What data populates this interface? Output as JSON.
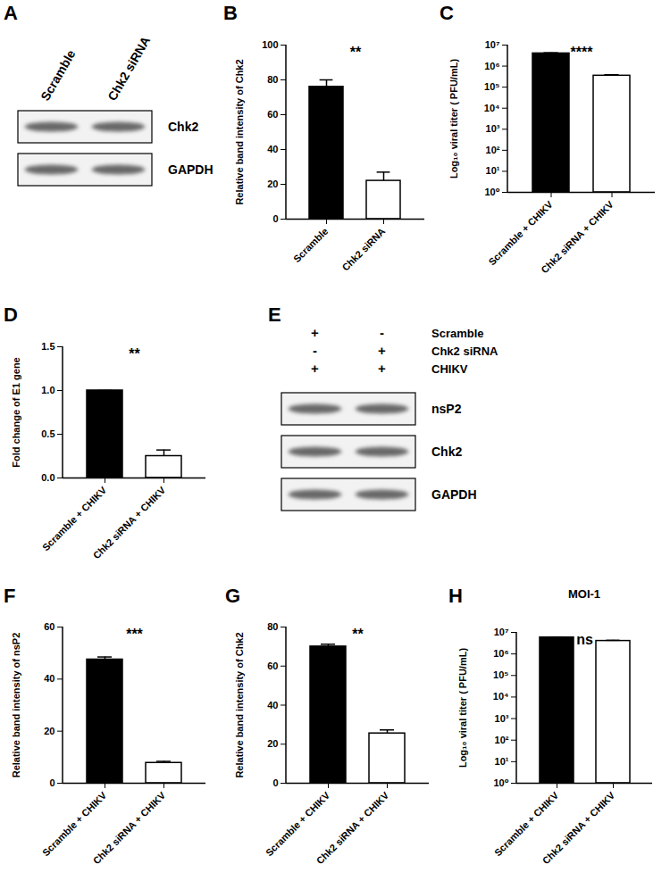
{
  "chart_data": [
    {
      "panel": "A",
      "type": "blot",
      "lanes": [
        "Scramble",
        "Chk2 siRNA"
      ],
      "bands": [
        "Chk2",
        "GAPDH"
      ]
    },
    {
      "panel": "B",
      "type": "bar",
      "categories": [
        "Scramble",
        "Chk2 siRNA"
      ],
      "values": [
        76,
        22
      ],
      "errors": [
        4,
        5
      ],
      "colors": [
        "#000000",
        "#ffffff"
      ],
      "ylabel": "Relative band intensity of Chk2",
      "ylim": [
        0,
        100
      ],
      "yticks": [
        0,
        20,
        40,
        60,
        80,
        100
      ],
      "annotation": "**"
    },
    {
      "panel": "C",
      "type": "bar",
      "categories": [
        "Scramble + CHIKV",
        "Chk2 siRNA + CHIKV"
      ],
      "values": [
        4000000,
        350000
      ],
      "errors": [
        300000,
        40000
      ],
      "colors": [
        "#000000",
        "#ffffff"
      ],
      "ylabel": "Log₁₀ viral titer ( PFU/mL)",
      "log": true,
      "ylim": [
        1,
        10000000
      ],
      "yticks": [
        {
          "value": 1,
          "label": "10⁰"
        },
        {
          "value": 10,
          "label": "10¹"
        },
        {
          "value": 100,
          "label": "10²"
        },
        {
          "value": 1000,
          "label": "10³"
        },
        {
          "value": 10000,
          "label": "10⁴"
        },
        {
          "value": 100000,
          "label": "10⁵"
        },
        {
          "value": 1000000,
          "label": "10⁶"
        },
        {
          "value": 10000000,
          "label": "10⁷"
        }
      ],
      "annotation": "****"
    },
    {
      "panel": "D",
      "type": "bar",
      "categories": [
        "Scramble + CHIKV",
        "Chk2 siRNA + CHIKV"
      ],
      "values": [
        1.0,
        0.25
      ],
      "errors": [
        0,
        0.07
      ],
      "colors": [
        "#000000",
        "#ffffff"
      ],
      "ylabel": "Fold change of E1 gene",
      "ylim": [
        0,
        1.5
      ],
      "yticks": [
        {
          "value": 0,
          "label": "0.0"
        },
        0.5,
        {
          "value": 1,
          "label": "1.0"
        },
        1.5
      ],
      "annotation": "**"
    },
    {
      "panel": "E",
      "type": "blot",
      "lanes": [
        "Scramble",
        "Chk2 siRNA"
      ],
      "conditions": [
        {
          "name": "Scramble",
          "signs": [
            "+",
            "-"
          ]
        },
        {
          "name": "Chk2 siRNA",
          "signs": [
            "-",
            "+"
          ]
        },
        {
          "name": "CHIKV",
          "signs": [
            "+",
            "+"
          ]
        }
      ],
      "bands": [
        "nsP2",
        "Chk2",
        "GAPDH"
      ]
    },
    {
      "panel": "F",
      "type": "bar",
      "categories": [
        "Scramble + CHIKV",
        "Chk2 siRNA + CHIKV"
      ],
      "values": [
        47.5,
        7.8
      ],
      "errors": [
        1,
        0.6
      ],
      "colors": [
        "#000000",
        "#ffffff"
      ],
      "ylabel": "Relative band intensity of nsP2",
      "ylim": [
        0,
        60
      ],
      "yticks": [
        0,
        20,
        40,
        60
      ],
      "annotation": "***"
    },
    {
      "panel": "G",
      "type": "bar",
      "categories": [
        "Scramble + CHIKV",
        "Chk2 siRNA + CHIKV"
      ],
      "values": [
        70,
        25.5
      ],
      "errors": [
        1.2,
        1.8
      ],
      "colors": [
        "#000000",
        "#ffffff"
      ],
      "ylabel": "Relative band intensity of Chk2",
      "ylim": [
        0,
        80
      ],
      "yticks": [
        0,
        20,
        40,
        60,
        80
      ],
      "annotation": "**"
    },
    {
      "panel": "H",
      "type": "bar",
      "title": "MOI-1",
      "categories": [
        "Scramble + CHIKV",
        "Chk2 siRNA + CHIKV"
      ],
      "values": [
        5800000,
        4000000
      ],
      "errors": [
        300000,
        300000
      ],
      "colors": [
        "#000000",
        "#ffffff"
      ],
      "ylabel": "Log₁₀ viral titer ( PFU/mL)",
      "log": true,
      "ylim": [
        1,
        10000000
      ],
      "yticks": [
        {
          "value": 1,
          "label": "10⁰"
        },
        {
          "value": 10,
          "label": "10¹"
        },
        {
          "value": 100,
          "label": "10²"
        },
        {
          "value": 1000,
          "label": "10³"
        },
        {
          "value": 10000,
          "label": "10⁴"
        },
        {
          "value": 100000,
          "label": "10⁵"
        },
        {
          "value": 1000000,
          "label": "10⁶"
        },
        {
          "value": 10000000,
          "label": "10⁷"
        }
      ],
      "annotation": "ns"
    }
  ]
}
